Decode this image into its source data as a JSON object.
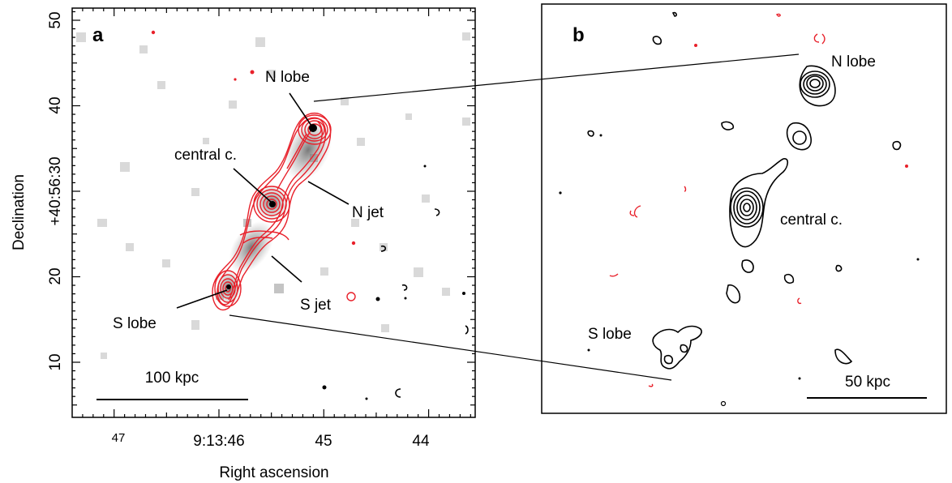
{
  "panel_a": {
    "label": "a",
    "ylabel": "Declination",
    "xlabel": "Right ascension",
    "annotations": {
      "n_lobe": "N lobe",
      "central": "central c.",
      "n_jet": "N jet",
      "s_jet": "S jet",
      "s_lobe": "S lobe"
    },
    "scalebar": "100 kpc"
  },
  "panel_b": {
    "label": "b",
    "annotations": {
      "n_lobe": "N lobe",
      "central": "central c.",
      "s_lobe": "S lobe"
    },
    "scalebar": "50 kpc"
  },
  "colors": {
    "contour_red": "#e8202a",
    "contour_black": "#000000"
  },
  "chart_data": {
    "type": "image-contour",
    "title": "",
    "xlabel": "Right ascension",
    "ylabel": "Declination",
    "x_ticks": [
      "47",
      "9:13:46",
      "45",
      "44"
    ],
    "y_ticks": [
      "10",
      "20",
      "+40:56:30",
      "40",
      "50"
    ],
    "y_values_arcsec": [
      10,
      20,
      30,
      40,
      50
    ],
    "ylim": [
      5,
      51
    ]
  }
}
